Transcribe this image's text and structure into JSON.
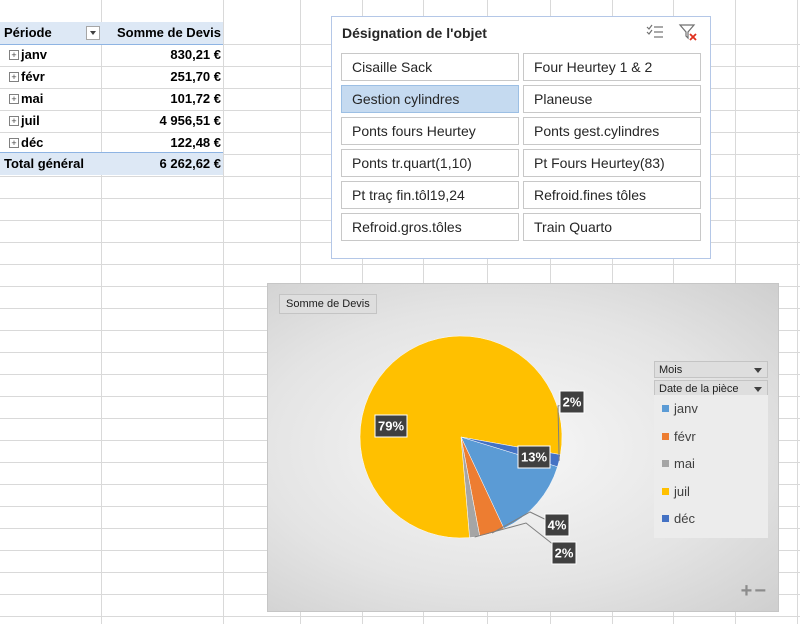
{
  "pivot": {
    "header_label": "Période",
    "header_value": "Somme de Devis",
    "rows": [
      {
        "label": "janv",
        "value": "830,21 €"
      },
      {
        "label": "févr",
        "value": "251,70 €"
      },
      {
        "label": "mai",
        "value": "101,72 €"
      },
      {
        "label": "juil",
        "value": "4 956,51 €"
      },
      {
        "label": "déc",
        "value": "122,48 €"
      }
    ],
    "total_label": "Total général",
    "total_value": "6 262,62 €",
    "expand_symbol": "+"
  },
  "slicer": {
    "title": "Désignation de l'objet",
    "icons": [
      "multi-select-icon",
      "clear-filter-icon"
    ],
    "items": [
      {
        "label": "Cisaille Sack",
        "selected": false
      },
      {
        "label": "Four Heurtey 1 & 2",
        "selected": false
      },
      {
        "label": "Gestion cylindres",
        "selected": true
      },
      {
        "label": "Planeuse",
        "selected": false
      },
      {
        "label": "Ponts fours Heurtey",
        "selected": false
      },
      {
        "label": "Ponts gest.cylindres",
        "selected": false
      },
      {
        "label": "Ponts tr.quart(1,10)",
        "selected": false
      },
      {
        "label": "Pt Fours Heurtey(83)",
        "selected": false
      },
      {
        "label": "Pt traç fin.tôl19,24",
        "selected": false
      },
      {
        "label": "Refroid.fines tôles",
        "selected": false
      },
      {
        "label": "Refroid.gros.tôles",
        "selected": false
      },
      {
        "label": "Train Quarto",
        "selected": false
      }
    ]
  },
  "chart": {
    "value_field": "Somme de Devis",
    "legend_fields": [
      "Mois",
      "Date de la pièce"
    ],
    "zoom_plus": "+",
    "zoom_minus": "−"
  },
  "chart_data": {
    "type": "pie",
    "categories": [
      "janv",
      "févr",
      "mai",
      "juil",
      "déc"
    ],
    "values": [
      830.21,
      251.7,
      101.72,
      4956.51,
      122.48
    ],
    "data_labels": [
      "13%",
      "4%",
      "2%",
      "79%",
      "2%"
    ],
    "colors": [
      "#5b9bd5",
      "#ed7d31",
      "#a5a5a5",
      "#ffc000",
      "#4472c4"
    ],
    "legend_position": "right"
  },
  "colors": {
    "accent": "#5b9bd5",
    "header_bg": "#dde8f5",
    "slicer_selected": "#c5daf0",
    "label_bg": "#404040"
  }
}
